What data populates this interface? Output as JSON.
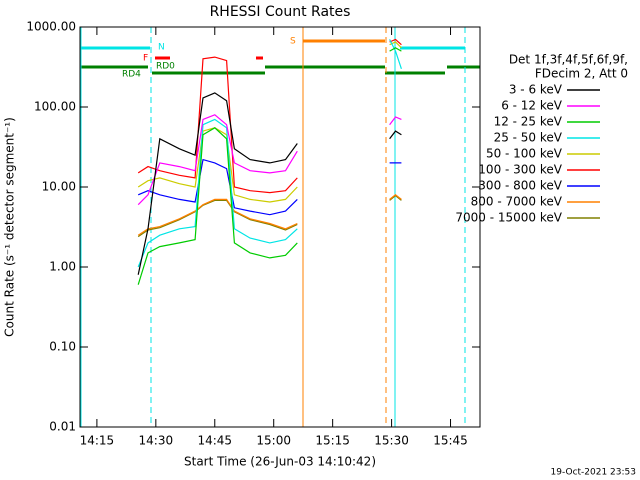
{
  "chart_data": {
    "type": "line",
    "title": "RHESSI Count Rates",
    "xlabel": "Start Time (26-Jun-03 14:10:42)",
    "ylabel": "Count Rate (s⁻¹ detector segment⁻¹)",
    "footer": "19-Oct-2021 23:53",
    "legend_title": [
      "Det 1f,3f,4f,5f,6f,9f,",
      "FDecim 2, Att 0"
    ],
    "annotations": [
      "N",
      "F",
      "RD0",
      "RD4",
      "S"
    ],
    "log_y": true,
    "xlim": [
      850.7,
      952.5
    ],
    "ylim": [
      0.01,
      1000
    ],
    "xticks": [
      {
        "value": 855,
        "label": "14:15"
      },
      {
        "value": 870,
        "label": "14:30"
      },
      {
        "value": 885,
        "label": "14:45"
      },
      {
        "value": 900,
        "label": "15:00"
      },
      {
        "value": 915,
        "label": "15:15"
      },
      {
        "value": 930,
        "label": "15:30"
      },
      {
        "value": 945,
        "label": "15:45"
      }
    ],
    "yticks": [
      {
        "value": 1000,
        "label": "1000.00"
      },
      {
        "value": 100,
        "label": "100.00"
      },
      {
        "value": 10,
        "label": "10.00"
      },
      {
        "value": 1,
        "label": "1.00"
      },
      {
        "value": 0.1,
        "label": "0.10"
      },
      {
        "value": 0.01,
        "label": "0.01"
      }
    ],
    "x": [
      865.5,
      868,
      871,
      876,
      880,
      882,
      885,
      888,
      890,
      894,
      899,
      903,
      906,
      918,
      929.5,
      931,
      932.5
    ],
    "series": [
      {
        "name": "3 - 6 keV",
        "color": "#000000",
        "values": [
          0.8,
          3,
          40,
          30,
          25,
          130,
          150,
          120,
          30,
          22,
          20,
          22,
          35,
          null,
          40,
          50,
          45
        ]
      },
      {
        "name": "6 - 12 keV",
        "color": "#ff00ff",
        "values": [
          6,
          8,
          20,
          18,
          16,
          70,
          80,
          60,
          20,
          16,
          15,
          16,
          28,
          null,
          60,
          75,
          70
        ]
      },
      {
        "name": "12 - 25 keV",
        "color": "#00cc00",
        "values": [
          0.6,
          1.5,
          1.8,
          2,
          2.2,
          45,
          55,
          40,
          2,
          1.5,
          1.3,
          1.4,
          2,
          null,
          500,
          550,
          500
        ]
      },
      {
        "name": "25 - 50 keV",
        "color": "#00e5e5",
        "values": [
          1,
          2,
          2.5,
          3,
          3.2,
          60,
          70,
          55,
          3,
          2.3,
          2,
          2.2,
          3,
          null,
          700,
          500,
          300
        ]
      },
      {
        "name": "50 - 100 keV",
        "color": "#cccc00",
        "values": [
          10,
          12,
          13,
          11,
          10,
          50,
          55,
          45,
          8,
          7,
          6.5,
          7,
          10,
          null,
          600,
          650,
          550
        ]
      },
      {
        "name": "100 - 300 keV",
        "color": "#ff0000",
        "values": [
          15,
          18,
          16,
          14,
          13,
          400,
          420,
          380,
          10,
          9,
          8.5,
          9,
          13,
          null,
          650,
          700,
          600
        ]
      },
      {
        "name": "300 - 800 keV",
        "color": "#0000ff",
        "values": [
          8,
          9,
          8,
          7,
          6.5,
          22,
          20,
          17,
          5.5,
          5,
          4.5,
          5,
          7,
          null,
          20,
          20,
          20
        ]
      },
      {
        "name": "800 - 7000 keV",
        "color": "#ff8000",
        "values": [
          2.5,
          3,
          3.2,
          4,
          5,
          6,
          7,
          7,
          5,
          4,
          3.5,
          3,
          3.5,
          null,
          7,
          8,
          7
        ]
      },
      {
        "name": "7000 - 15000 keV",
        "color": "#808000",
        "values": [
          2.4,
          2.9,
          3.1,
          3.9,
          4.9,
          5.9,
          6.8,
          6.8,
          4.9,
          3.9,
          3.4,
          2.9,
          3.4,
          null,
          6.8,
          7.8,
          6.8
        ]
      }
    ]
  }
}
